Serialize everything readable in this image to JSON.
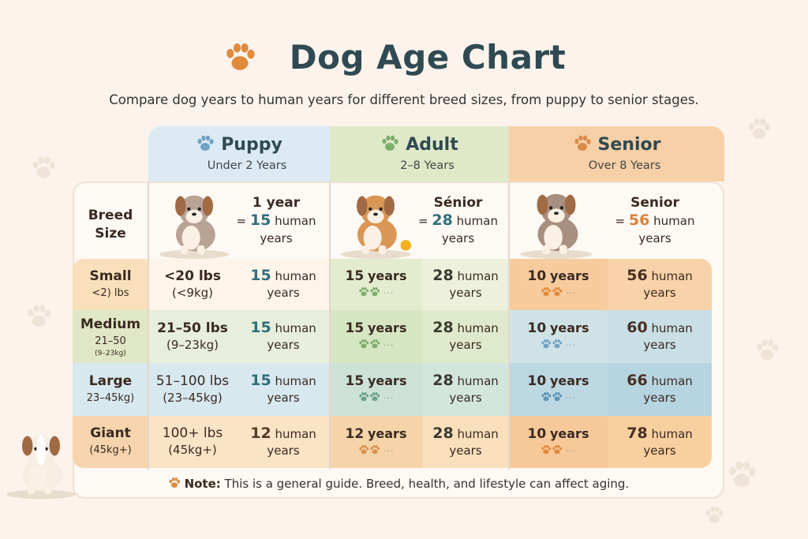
{
  "title": "Dog Age Chart",
  "subtitle": "Compare dog years to human years for different breed sizes, from puppy to senior stages.",
  "stages": [
    {
      "name": "Puppy",
      "range": "Under 2 Years",
      "color": "#dcebf3",
      "icon_color": "#6fa4c2"
    },
    {
      "name": "Adult",
      "range": "2–8 Years",
      "color": "#dfe9c8",
      "icon_color": "#7fae6b"
    },
    {
      "name": "Senior",
      "range": "Over 8 Years",
      "color": "#f7d0a7",
      "icon_color": "#d98a4a"
    }
  ],
  "header_row": {
    "breed_label_1": "Breed",
    "breed_label_2": "Size",
    "puppy": {
      "label": "1 year",
      "eq": "=",
      "value": "15",
      "unit": "human",
      "unit2": "years"
    },
    "adult": {
      "label": "Sénior",
      "eq": "=",
      "value": "28",
      "unit": "human",
      "unit2": "years"
    },
    "senior": {
      "label": "Senior",
      "eq": "=",
      "value": "56",
      "unit": "human",
      "unit2": "years"
    }
  },
  "rows": [
    {
      "size": "Small",
      "size_sub": "<2) lbs",
      "size_sub2": "",
      "weight": "<20 lbs",
      "weight_kg": "(<9kg)",
      "puppy_human": "15",
      "adult_years": "15",
      "adult_human": "28",
      "senior_years": "10",
      "senior_human": "56"
    },
    {
      "size": "Medium",
      "size_sub": "21–50",
      "size_sub2": "(9–23kg)",
      "weight": "21–50 lbs",
      "weight_kg": "(9–23kg)",
      "puppy_human": "15",
      "adult_years": "15",
      "adult_human": "28",
      "senior_years": "10",
      "senior_human": "60"
    },
    {
      "size": "Large",
      "size_sub": "23–45kg)",
      "size_sub2": "",
      "weight": "51–100 lbs",
      "weight_kg": "(23–45kg)",
      "puppy_human": "15",
      "adult_years": "15",
      "adult_human": "28",
      "senior_years": "10",
      "senior_human": "66"
    },
    {
      "size": "Giant",
      "size_sub": "(45kg+)",
      "size_sub2": "",
      "weight": "100+ lbs",
      "weight_kg": "(45kg+)",
      "puppy_human": "12",
      "adult_years": "12",
      "adult_human": "28",
      "senior_years": "10",
      "senior_human": "78"
    }
  ],
  "units": {
    "years": "years",
    "human": "human",
    "human2": "years",
    "dots": "···"
  },
  "note": {
    "label": "Note:",
    "text": "This is a general guide. Breed, health, and lifestyle can affect aging."
  },
  "colors": {
    "title": "#2f4a52",
    "teal_number": "#2f6f7a",
    "orange_number": "#d9823f",
    "paw": "#e08a3c"
  }
}
